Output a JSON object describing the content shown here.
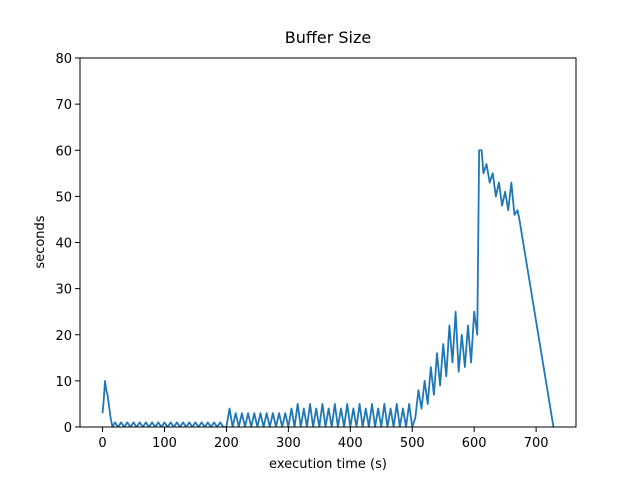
{
  "chart_data": {
    "type": "line",
    "title": "Buffer Size",
    "xlabel": "execution time (s)",
    "ylabel": "seconds",
    "color": "#1f77b4",
    "grid": false,
    "xlim": [
      -36.4,
      764.4
    ],
    "xticks": [
      0,
      100,
      200,
      300,
      400,
      500,
      600,
      700
    ],
    "ylim": [
      0,
      80
    ],
    "yticks": [
      0,
      10,
      20,
      30,
      40,
      50,
      60,
      70,
      80
    ],
    "x": [
      0,
      2,
      4,
      6,
      8,
      10,
      13,
      16,
      20,
      25,
      30,
      35,
      40,
      45,
      50,
      55,
      60,
      65,
      70,
      75,
      80,
      85,
      90,
      95,
      100,
      105,
      110,
      115,
      120,
      125,
      130,
      135,
      140,
      145,
      150,
      155,
      160,
      165,
      170,
      175,
      180,
      185,
      190,
      195,
      200,
      205,
      210,
      215,
      220,
      225,
      230,
      235,
      240,
      245,
      250,
      255,
      260,
      265,
      270,
      275,
      280,
      285,
      290,
      295,
      300,
      305,
      310,
      315,
      320,
      325,
      330,
      335,
      340,
      345,
      350,
      355,
      360,
      365,
      370,
      375,
      380,
      385,
      390,
      395,
      400,
      405,
      410,
      415,
      420,
      425,
      430,
      435,
      440,
      445,
      450,
      455,
      460,
      465,
      470,
      475,
      480,
      485,
      490,
      495,
      500,
      505,
      510,
      515,
      520,
      525,
      530,
      535,
      540,
      545,
      550,
      555,
      560,
      565,
      570,
      575,
      580,
      585,
      590,
      595,
      600,
      605,
      608,
      612,
      615,
      620,
      625,
      630,
      635,
      640,
      645,
      650,
      655,
      660,
      665,
      670,
      673,
      728
    ],
    "values": [
      3,
      6,
      10,
      8,
      7,
      5,
      2,
      0,
      1,
      0,
      1,
      0,
      1,
      0,
      1,
      0,
      1,
      0,
      1,
      0,
      1,
      0,
      1,
      0,
      1,
      0,
      1,
      0,
      1,
      0,
      1,
      0,
      1,
      0,
      1,
      0,
      1,
      0,
      1,
      0,
      1,
      0,
      1,
      0,
      0,
      4,
      0,
      3,
      0,
      3,
      0,
      3,
      0,
      3,
      0,
      3,
      0,
      3,
      0,
      3,
      0,
      3,
      0,
      3,
      0,
      4,
      0,
      5,
      0,
      4,
      0,
      5,
      0,
      4,
      0,
      5,
      0,
      4,
      0,
      5,
      0,
      4,
      0,
      5,
      0,
      4,
      0,
      5,
      0,
      4,
      0,
      5,
      0,
      4,
      0,
      5,
      0,
      4,
      0,
      5,
      0,
      4,
      0,
      5,
      0,
      2,
      8,
      4,
      10,
      5,
      13,
      7,
      16,
      9,
      18,
      11,
      22,
      14,
      25,
      12,
      20,
      13,
      22,
      14,
      25,
      20,
      60,
      60,
      55,
      57,
      53,
      55,
      50,
      53,
      48,
      51,
      47,
      53,
      46,
      47,
      45,
      0
    ]
  }
}
